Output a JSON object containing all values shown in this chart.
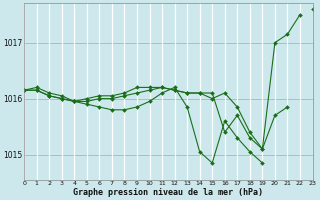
{
  "xlabel": "Graphe pression niveau de la mer (hPa)",
  "bg_color": "#cce8ec",
  "grid_color_white": "#ffffff",
  "grid_color_pink": "#f0a0a0",
  "line_color": "#1a6e1a",
  "marker_color": "#1a6e1a",
  "series": [
    [
      1016.15,
      1016.2,
      1016.1,
      1016.05,
      1015.95,
      1015.9,
      1015.85,
      1015.8,
      1015.8,
      1015.85,
      1015.95,
      1016.1,
      1016.2,
      1015.85,
      1015.05,
      1014.85,
      1015.6,
      1015.3,
      1015.05,
      1014.85,
      null,
      null,
      null,
      null
    ],
    [
      1016.15,
      1016.15,
      1016.05,
      1016.0,
      1015.95,
      1015.95,
      1016.0,
      1016.0,
      1016.05,
      1016.1,
      1016.15,
      1016.2,
      1016.15,
      1016.1,
      1016.1,
      1016.0,
      1016.1,
      1015.85,
      1015.4,
      1015.1,
      1015.7,
      1015.85,
      null,
      null
    ],
    [
      1016.15,
      1016.15,
      1016.05,
      1016.0,
      1015.95,
      1016.0,
      1016.05,
      1016.05,
      1016.1,
      1016.2,
      1016.2,
      1016.2,
      1016.15,
      1016.1,
      1016.1,
      1016.1,
      1015.4,
      1015.7,
      1015.3,
      1015.1,
      1017.0,
      1017.15,
      1017.5,
      null
    ],
    [
      null,
      null,
      null,
      null,
      null,
      null,
      null,
      null,
      null,
      null,
      null,
      null,
      null,
      null,
      null,
      null,
      null,
      null,
      null,
      null,
      null,
      null,
      null,
      1017.6
    ]
  ],
  "ylim": [
    1014.55,
    1017.7
  ],
  "yticks": [
    1015,
    1016,
    1017
  ],
  "xlim": [
    0,
    23
  ],
  "hours": [
    0,
    1,
    2,
    3,
    4,
    5,
    6,
    7,
    8,
    9,
    10,
    11,
    12,
    13,
    14,
    15,
    16,
    17,
    18,
    19,
    20,
    21,
    22,
    23
  ]
}
